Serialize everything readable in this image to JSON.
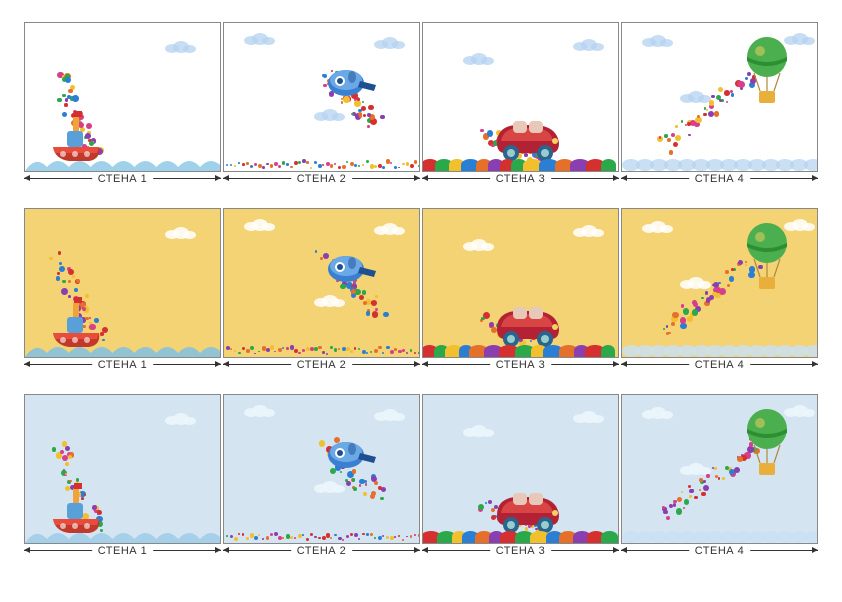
{
  "labels": [
    "СТЕНА 1",
    "СТЕНА 2",
    "СТЕНА 3",
    "СТЕНА 4"
  ],
  "rows": [
    {
      "bg": "#ffffff",
      "wave": "#8ec9e8",
      "cloud": "rgba(180,210,240,0.75)"
    },
    {
      "bg": "#f3d374",
      "wave": "#7fbfe4",
      "cloud": "rgba(255,255,255,0.85)"
    },
    {
      "bg": "#d4e5f1",
      "wave": "#9dcbe8",
      "cloud": "rgba(235,245,252,0.9)"
    }
  ],
  "dot_colors": [
    "#d62f2f",
    "#2a7fd4",
    "#2aa84a",
    "#f2c02c",
    "#e5702a",
    "#8a3fb0",
    "#d63f8a"
  ],
  "boat": {
    "hull": "#c0392b",
    "hull2": "#e74c3c",
    "cabin": "#5aa0d8",
    "flag": "#d62f2f",
    "stack": "#f1a33a"
  },
  "plane": {
    "body": "#3b7fd1",
    "body2": "#6aa8e6",
    "dark": "#1d4f91"
  },
  "car": {
    "body": "#b22234",
    "body2": "#d94445",
    "wheel": "#28658f",
    "window": "#e8c8b8"
  },
  "balloon": {
    "top": "#4bae4f",
    "stripe": "#2d8f32",
    "basket": "#e8b03a",
    "rope": "#b0893a"
  },
  "pebbles": [
    "#d62f2f",
    "#2aa84a",
    "#f2c02c",
    "#2a7fd4",
    "#e5702a",
    "#8a3fb0"
  ]
}
